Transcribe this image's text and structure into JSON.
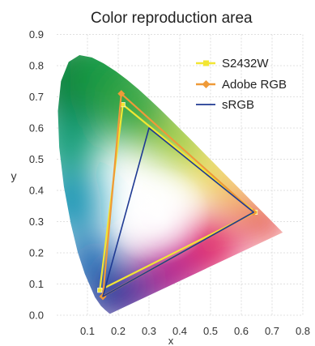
{
  "chart_data": {
    "type": "scatter",
    "title": "Color reproduction area",
    "xlabel": "x",
    "ylabel": "y",
    "xlim": [
      0.0,
      0.8
    ],
    "ylim": [
      0.0,
      0.9
    ],
    "x_ticks": [
      "0.1",
      "0.2",
      "0.3",
      "0.4",
      "0.5",
      "0.6",
      "0.7",
      "0.8"
    ],
    "y_ticks": [
      "0.0",
      "0.1",
      "0.2",
      "0.3",
      "0.4",
      "0.5",
      "0.6",
      "0.7",
      "0.8",
      "0.9"
    ],
    "grid": true,
    "legend_position": "top-right",
    "series": [
      {
        "name": "S2432W",
        "color": "#f2e633",
        "marker": "square",
        "points": [
          [
            0.645,
            0.33
          ],
          [
            0.215,
            0.675
          ],
          [
            0.14,
            0.08
          ]
        ]
      },
      {
        "name": "Adobe RGB",
        "color": "#ef9a38",
        "marker": "diamond",
        "points": [
          [
            0.64,
            0.33
          ],
          [
            0.21,
            0.71
          ],
          [
            0.15,
            0.06
          ]
        ]
      },
      {
        "name": "sRGB",
        "color": "#1f3a93",
        "marker": "none",
        "points": [
          [
            0.64,
            0.33
          ],
          [
            0.3,
            0.6
          ],
          [
            0.15,
            0.06
          ]
        ]
      }
    ]
  }
}
